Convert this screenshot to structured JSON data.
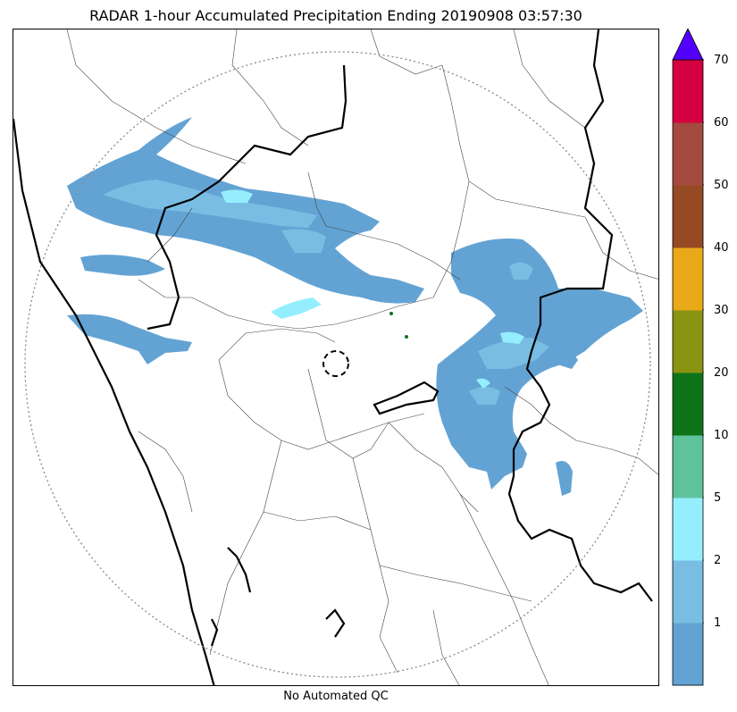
{
  "title": "RADAR 1-hour Accumulated Precipitation Ending 20190908 03:57:30",
  "footer": "No Automated QC",
  "colors": {
    "background": "#ffffff",
    "coastline": "#000000",
    "range_ring": "#888888",
    "district_lines": "#444444"
  },
  "colorbar": {
    "extend": "max",
    "levels": [
      {
        "min": 0,
        "max": 1,
        "color": "#63a3d4"
      },
      {
        "min": 1,
        "max": 2,
        "color": "#79bde3"
      },
      {
        "min": 2,
        "max": 5,
        "color": "#95eefd"
      },
      {
        "min": 5,
        "max": 10,
        "color": "#5ec39b"
      },
      {
        "min": 10,
        "max": 20,
        "color": "#0f7419"
      },
      {
        "min": 20,
        "max": 30,
        "color": "#8a9312"
      },
      {
        "min": 30,
        "max": 40,
        "color": "#e9a919"
      },
      {
        "min": 40,
        "max": 50,
        "color": "#964a24"
      },
      {
        "min": 50,
        "max": 60,
        "color": "#a44a40"
      },
      {
        "min": 60,
        "max": 70,
        "color": "#d5003f"
      }
    ],
    "over_color": "#5400ff",
    "ticks": [
      "1",
      "2",
      "5",
      "10",
      "20",
      "30",
      "40",
      "50",
      "60",
      "70"
    ]
  }
}
